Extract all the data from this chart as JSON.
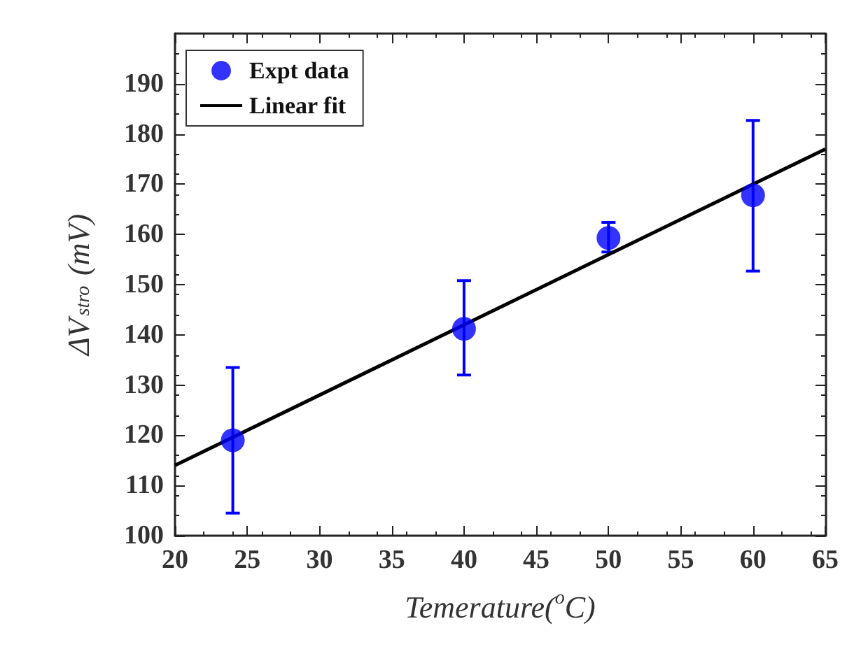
{
  "chart_data": {
    "type": "scatter",
    "xlabel": "Temerature($^{o}$C)",
    "ylabel": "ΔV$_{stro}$ (mV)",
    "xlim": [
      20,
      65
    ],
    "xticks": [
      20,
      25,
      30,
      35,
      40,
      45,
      50,
      55,
      60,
      65
    ],
    "ylim": [
      100,
      200
    ],
    "yticks": [
      100,
      110,
      120,
      130,
      140,
      150,
      160,
      170,
      180,
      190
    ],
    "grid": false,
    "legend": "top left",
    "marker": "circle",
    "series": [
      {
        "name": "Expt data",
        "color": "#0000ff",
        "x": [
          24,
          40,
          50,
          60
        ],
        "values": [
          119,
          141.2,
          159.3,
          167.8
        ],
        "errors": [
          [
            104.5,
            133.5
          ],
          [
            132,
            150.8
          ],
          [
            156.5,
            162.4
          ],
          [
            152.7,
            182.7
          ]
        ]
      },
      {
        "name": "Linear fit",
        "type": "line",
        "color": "#000000",
        "x": [
          20,
          65
        ],
        "values": [
          114,
          177
        ],
        "marker": "none",
        "line_style": "solid"
      }
    ]
  }
}
